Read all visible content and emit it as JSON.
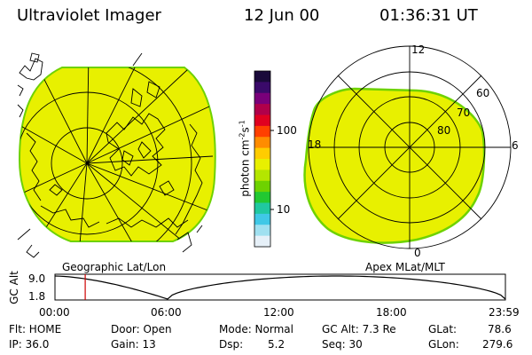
{
  "header": {
    "instrument": "Ultraviolet Imager",
    "date": "12 Jun 00",
    "time": "01:36:31 UT"
  },
  "left_panel": {
    "caption": "Geographic Lat/Lon"
  },
  "right_panel": {
    "caption": "Apex MLat/MLT",
    "mlt_labels": {
      "top": "12",
      "right": "6",
      "bottom": "0",
      "left": "18"
    },
    "lat_labels": [
      "60",
      "70",
      "80"
    ]
  },
  "colorbar": {
    "unit_prefix": "photon cm",
    "unit_exp1": "-2",
    "unit_mid": "s",
    "unit_exp2": "-1",
    "tick_labels": [
      "100",
      "10"
    ],
    "tick_values": [
      100,
      10
    ],
    "scale": "log",
    "colors_top_to_bottom": [
      "#1a0a3a",
      "#3a0a6a",
      "#7a007a",
      "#b0004a",
      "#e00020",
      "#ff4000",
      "#ff8c00",
      "#ffcc00",
      "#e8f000",
      "#b4e600",
      "#6ed200",
      "#22c832",
      "#20c8a0",
      "#40c8e6",
      "#a0e0f0",
      "#e6f0f8"
    ]
  },
  "altitude_plot": {
    "ylabel": "GC Alt",
    "y_ticks": [
      "9.0",
      "1.8"
    ],
    "x_ticks": [
      "00:00",
      "06:00",
      "12:00",
      "18:00",
      "23:59"
    ],
    "marker_hour": 1.61,
    "curve_color": "#000000",
    "marker_color": "#cc0000"
  },
  "info": {
    "flt": "Flt: HOME",
    "ip": "IP: 36.0",
    "door": "Door: Open",
    "gain": "Gain: 13",
    "mode": "Mode: Normal",
    "dsp_label": "Dsp:",
    "dsp_value": "5.2",
    "gc_alt": "GC Alt: 7.3 Re",
    "seq": "Seq: 30",
    "glat_label": "GLat:",
    "glat_value": "78.6",
    "glon_label": "GLon:",
    "glon_value": "279.6"
  },
  "colors": {
    "image_fill": "#e8f000",
    "image_edge": "#6ed200"
  }
}
